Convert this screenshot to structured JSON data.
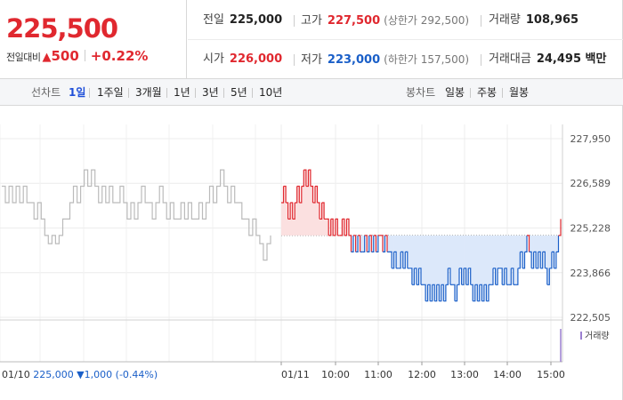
{
  "quote": {
    "price": "225,500",
    "change_label": "전일대비",
    "change_arrow": "▲",
    "change_amount": "500",
    "change_percent": "+0.22%",
    "stats": {
      "prev_close": {
        "label": "전일",
        "value": "225,000"
      },
      "high": {
        "label": "고가",
        "value": "227,500",
        "note": "(상한가 292,500)"
      },
      "volume": {
        "label": "거래량",
        "value": "108,965"
      },
      "open": {
        "label": "시가",
        "value": "226,000"
      },
      "low": {
        "label": "저가",
        "value": "223,000",
        "note": "(하한가 157,500)"
      },
      "amount": {
        "label": "거래대금",
        "value": "24,495 백만"
      }
    }
  },
  "toolbar": {
    "line_chart_label": "선차트",
    "periods": [
      "1일",
      "1주일",
      "3개월",
      "1년",
      "3년",
      "5년",
      "10년"
    ],
    "active_period": "1일",
    "candle_chart_label": "봉차트",
    "candle_periods": [
      "일봉",
      "주봉",
      "월봉"
    ]
  },
  "chart_data": {
    "type": "line",
    "title": "",
    "xlabel": "",
    "ylabel": "",
    "y_ticks": [
      "227,950",
      "226,589",
      "225,228",
      "223,866",
      "222,505"
    ],
    "y_tick_values": [
      227950,
      226589,
      225228,
      223866,
      222505
    ],
    "ylim": [
      222505,
      227950
    ],
    "x_ticks": [
      "01/11",
      "10:00",
      "11:00",
      "12:00",
      "13:00",
      "14:00",
      "15:00"
    ],
    "prev_day": {
      "date": "01/10",
      "close": "225,000",
      "arrow": "▼",
      "change": "1,000",
      "pct": "(-0.44%)"
    },
    "reference_price": 225000,
    "grid": true,
    "colors": {
      "up": "#e0282f",
      "down": "#1a5fc8",
      "prev_day": "#bbbbbb",
      "down_fill": "#dce8fa",
      "up_fill": "#fbe0e0"
    },
    "series": [
      {
        "session": "previous",
        "values": [
          226500,
          226000,
          226500,
          226000,
          226500,
          226000,
          226500,
          226000,
          226000,
          225500,
          226000,
          225500,
          225000,
          224750,
          225000,
          224750,
          225000,
          225500,
          225500,
          226000,
          226500,
          226000,
          226500,
          227000,
          226500,
          227000,
          226500,
          226000,
          226500,
          226000,
          226500,
          226000,
          226000,
          226500,
          226000,
          225500,
          226000,
          225500,
          226000,
          226500,
          226000,
          226000,
          225500,
          226000,
          226500,
          226000,
          225500,
          226000,
          225500,
          225500,
          226000,
          225500,
          226000,
          225500,
          225500,
          226000,
          225500,
          226000,
          226500,
          226000,
          226500,
          227000,
          226500,
          226000,
          226500,
          226000,
          226000,
          225500,
          225500,
          225000,
          225500,
          225000,
          224750,
          224250,
          224750,
          225000
        ]
      },
      {
        "session": "today",
        "values": [
          226000,
          226500,
          226000,
          225500,
          226000,
          225500,
          226000,
          226500,
          226000,
          226500,
          227000,
          226500,
          227000,
          226500,
          226000,
          226500,
          226000,
          225500,
          226000,
          225500,
          225500,
          225000,
          225500,
          225000,
          225500,
          225000,
          225000,
          225500,
          225000,
          225500,
          225000,
          224500,
          225000,
          224500,
          225000,
          224500,
          224500,
          225000,
          224500,
          225000,
          224500,
          225000,
          224500,
          225000,
          225000,
          224500,
          225000,
          224500,
          224500,
          224000,
          224500,
          224000,
          224000,
          224500,
          224000,
          224500,
          224000,
          224000,
          223500,
          224000,
          223500,
          224000,
          223500,
          223500,
          223000,
          223500,
          223000,
          223500,
          223000,
          223500,
          223000,
          223500,
          223000,
          223500,
          224000,
          223500,
          223500,
          223000,
          223500,
          224000,
          223500,
          224000,
          223500,
          224000,
          223500,
          223000,
          223500,
          223000,
          223500,
          223000,
          223500,
          223000,
          223500,
          223500,
          224000,
          223500,
          224000,
          224000,
          223500,
          224000,
          223500,
          223500,
          224000,
          223500,
          223500,
          224000,
          224500,
          224000,
          224500,
          225000,
          224500,
          224000,
          224500,
          224000,
          224500,
          224000,
          224500,
          224000,
          223500,
          224000,
          224500,
          224000,
          224500,
          225000,
          225500
        ]
      }
    ],
    "volume_legend": "거래량"
  }
}
